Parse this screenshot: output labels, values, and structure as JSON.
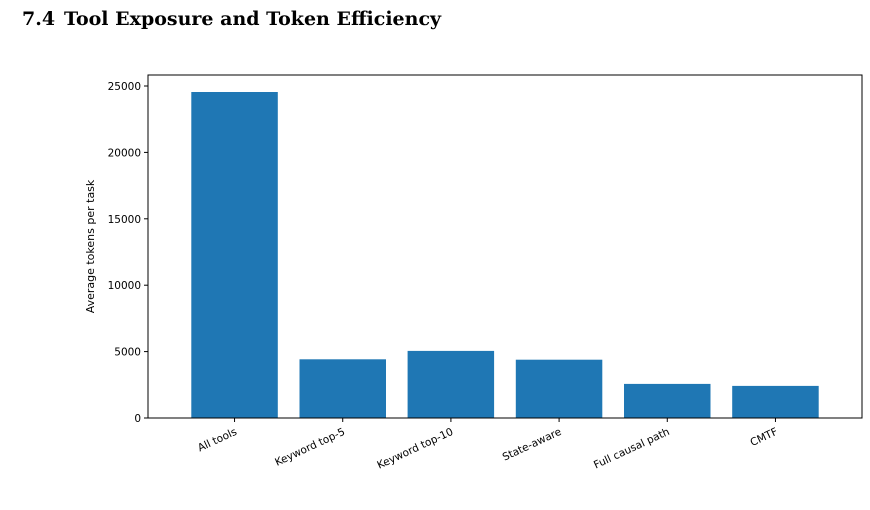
{
  "section": {
    "number": "7.4",
    "title": "Tool Exposure and Token Efficiency"
  },
  "chart_data": {
    "type": "bar",
    "title": "",
    "xlabel": "",
    "ylabel": "Average tokens per task",
    "categories": [
      "All tools",
      "Keyword top-5",
      "Keyword top-10",
      "State-aware",
      "Full causal path",
      "CMTF"
    ],
    "values": [
      24550,
      4420,
      5050,
      4390,
      2570,
      2420
    ],
    "ylim": [
      0,
      25000
    ],
    "yticks": [
      0,
      5000,
      10000,
      15000,
      20000,
      25000
    ],
    "bar_color": "#1f77b4",
    "grid": false,
    "legend": "none"
  }
}
